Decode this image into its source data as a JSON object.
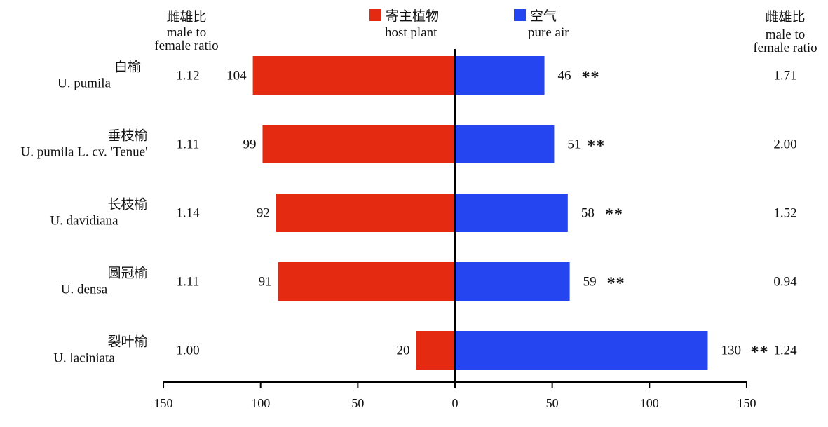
{
  "chart_data": {
    "type": "bar",
    "orientation": "horizontal-diverging",
    "categories": [
      {
        "cn": "白榆",
        "latin": "U. pumila"
      },
      {
        "cn": "垂枝榆",
        "latin": "U. pumila L. cv. 'Tenue'"
      },
      {
        "cn": "长枝榆",
        "latin": "U. davidiana"
      },
      {
        "cn": "圆冠榆",
        "latin": "U. densa"
      },
      {
        "cn": "裂叶榆",
        "latin": "U. laciniata"
      }
    ],
    "series": [
      {
        "name_cn": "寄主植物",
        "name_en": "host plant",
        "color": "#e52a12",
        "values": [
          104,
          99,
          92,
          91,
          20
        ]
      },
      {
        "name_cn": "空气",
        "name_en": "pure air",
        "color": "#2445f0",
        "values": [
          46,
          51,
          58,
          59,
          130
        ]
      }
    ],
    "significance": [
      "**",
      "**",
      "**",
      "**",
      "**"
    ],
    "left_ratio": {
      "cn": "雌雄比",
      "en1": "male to",
      "en2": "female ratio",
      "values": [
        "1.12",
        "1.11",
        "1.14",
        "1.11",
        "1.00"
      ]
    },
    "right_ratio": {
      "cn": "雌雄比",
      "en1": "male to",
      "en2": "female ratio",
      "values": [
        "1.71",
        "2.00",
        "1.52",
        "0.94",
        "1.24"
      ]
    },
    "xlim": [
      -150,
      150
    ],
    "x_ticks": [
      -150,
      -100,
      -50,
      0,
      50,
      100,
      150
    ],
    "x_tick_labels": [
      "150",
      "100",
      "50",
      "0",
      "50",
      "100",
      "150"
    ],
    "legend_position": "top-center"
  }
}
